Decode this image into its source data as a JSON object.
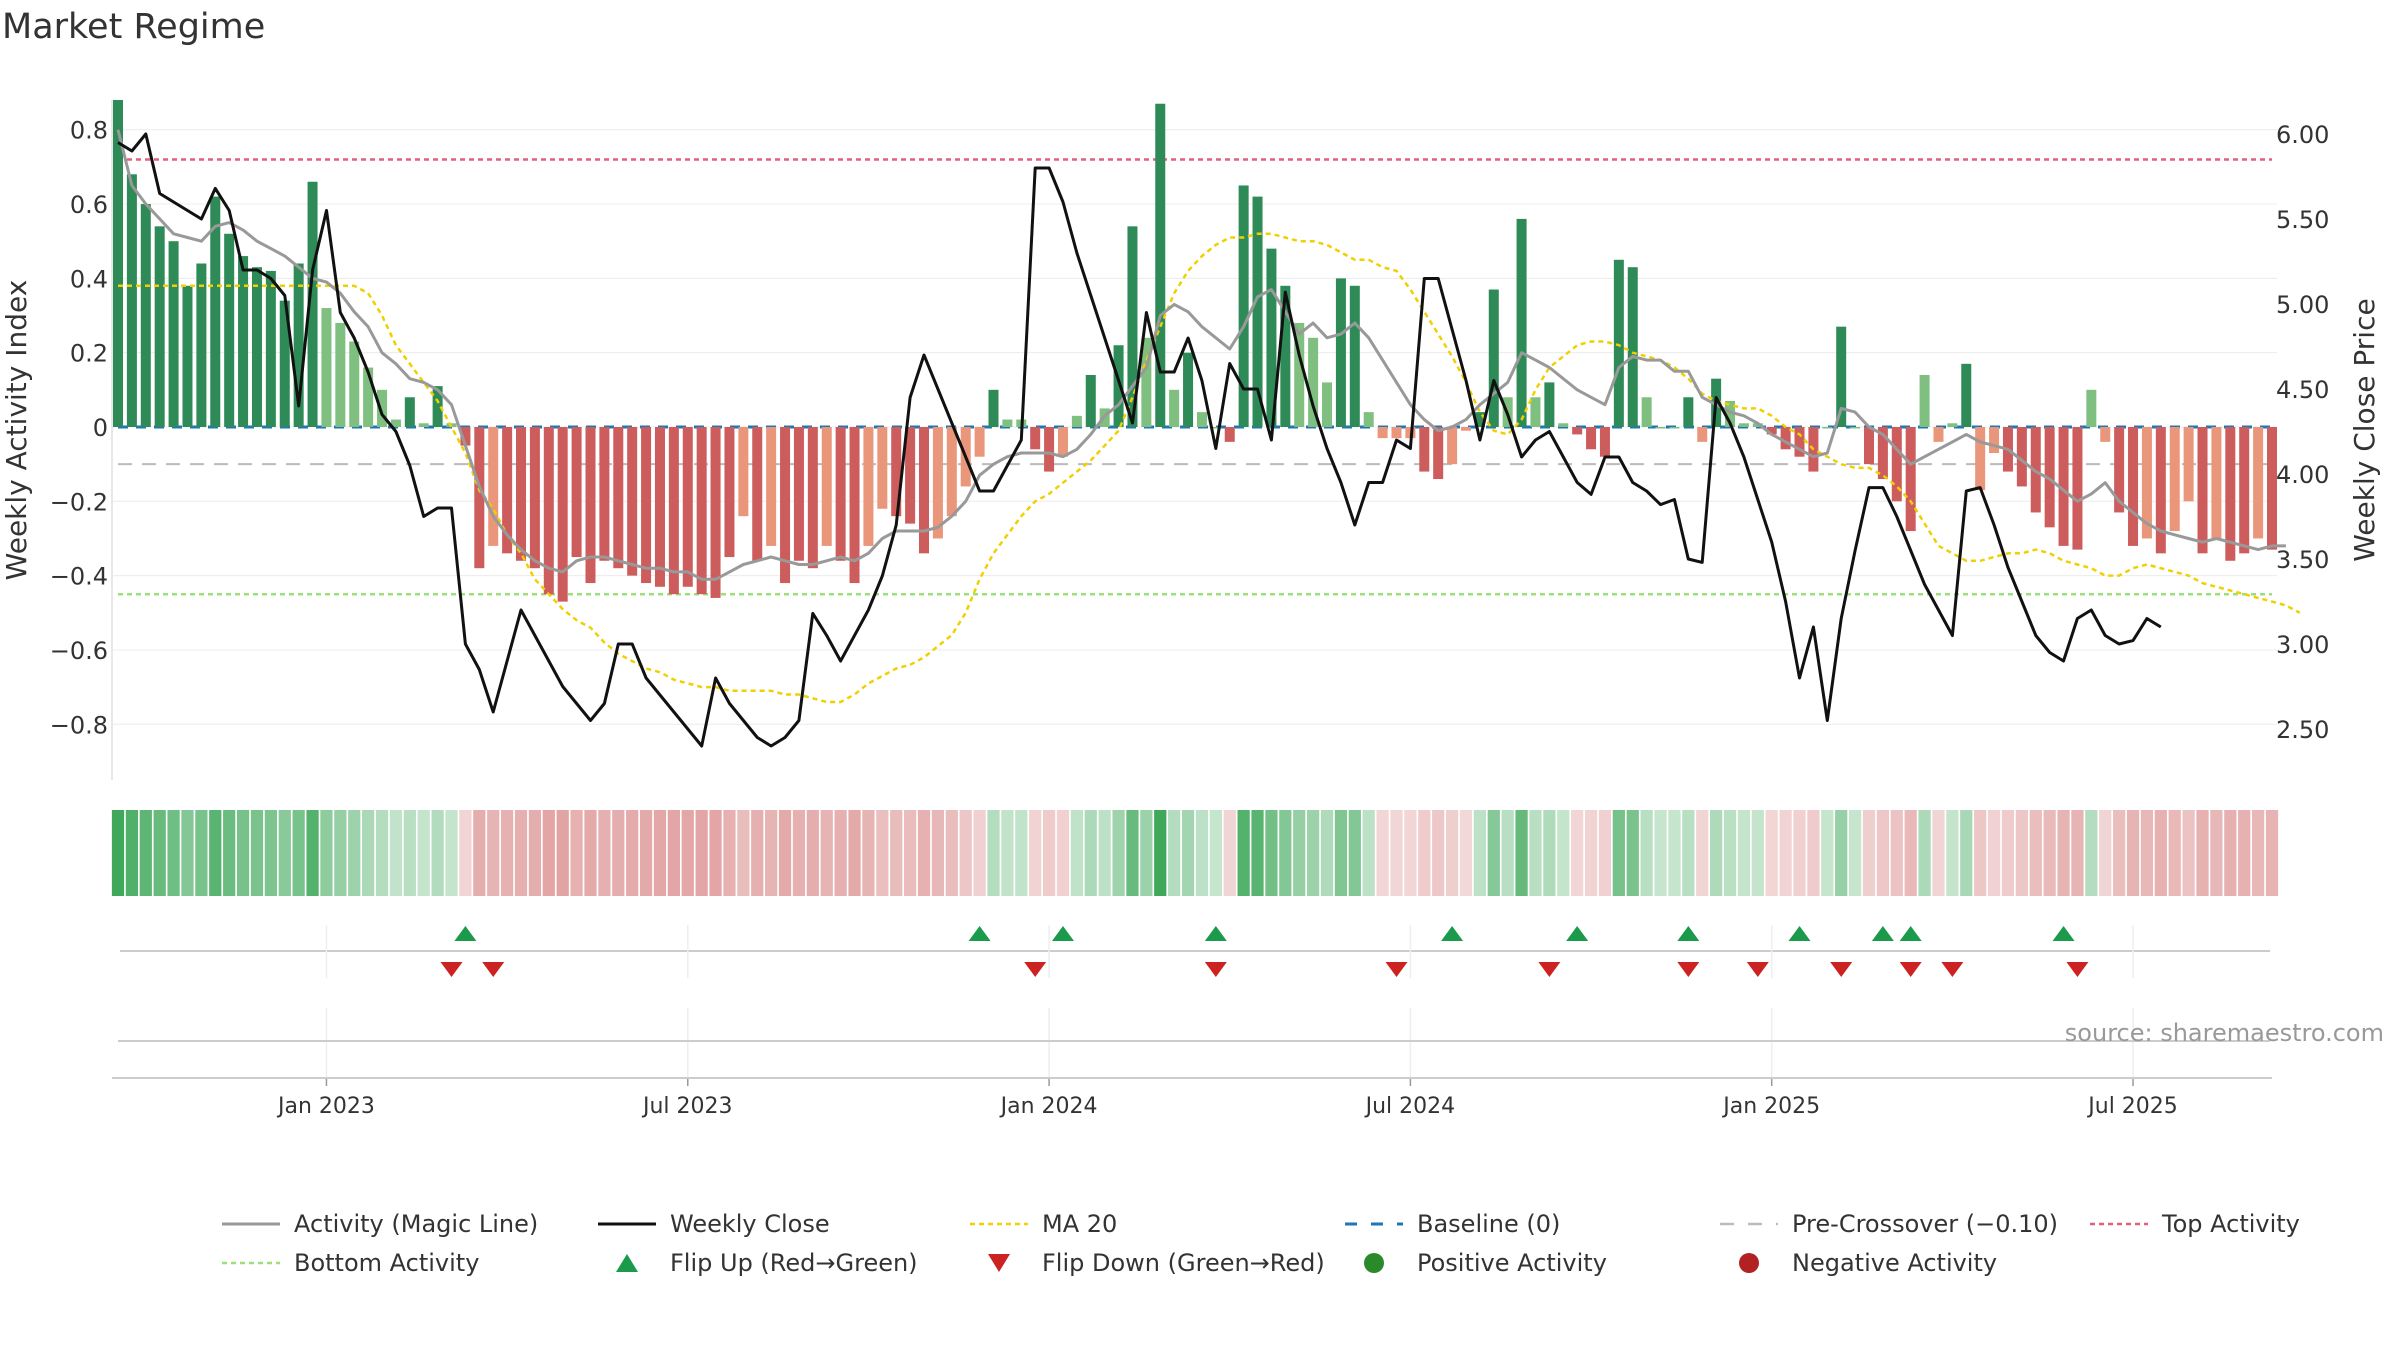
{
  "title": "Market Regime",
  "source": "source: sharemaestro.com",
  "colors": {
    "pos_dark": "#2e8b57",
    "pos_light": "#7fbf7f",
    "neg_dark": "#cd5c5c",
    "neg_light": "#e9967a",
    "close": "#111111",
    "magic": "#999999",
    "ma20": "#f0d000",
    "baseline": "#1f77b4",
    "precross": "#bbbbbb",
    "top": "#e0607e",
    "bottom": "#9be07a",
    "flip_up": "#1a9a4a",
    "flip_down": "#cc2222"
  },
  "chart_data": {
    "type": "bar",
    "title": "Market Regime",
    "ylabel_left": "Weekly Activity Index",
    "ylabel_right": "Weekly Close Price",
    "ylim_left": [
      -0.95,
      0.88
    ],
    "ylim_right": [
      2.2,
      6.2
    ],
    "left_ticks": [
      -0.8,
      -0.6,
      -0.4,
      -0.2,
      0,
      0.2,
      0.4,
      0.6,
      0.8
    ],
    "left_tick_labels": [
      "−0.8",
      "−0.6",
      "−0.4",
      "−0.2",
      "0",
      "0.2",
      "0.4",
      "0.6",
      "0.8"
    ],
    "right_ticks": [
      2.5,
      3.0,
      3.5,
      4.0,
      4.5,
      5.0,
      5.5,
      6.0
    ],
    "right_tick_labels": [
      "2.50",
      "3.00",
      "3.50",
      "4.00",
      "4.50",
      "5.00",
      "5.50",
      "6.00"
    ],
    "x_tick_labels": [
      "Jan 2023",
      "Jul 2023",
      "Jan 2024",
      "Jul 2024",
      "Jan 2025",
      "Jul 2025"
    ],
    "x_tick_weeks": [
      15,
      41,
      67,
      93,
      119,
      145
    ],
    "grid": true,
    "reference_lines": {
      "top_activity": 0.72,
      "bottom_activity": -0.45,
      "pre_crossover": -0.1,
      "baseline": 0
    },
    "activity": [
      0.88,
      0.68,
      0.6,
      0.54,
      0.5,
      0.38,
      0.44,
      0.62,
      0.52,
      0.46,
      0.43,
      0.42,
      0.34,
      0.44,
      0.66,
      0.32,
      0.28,
      0.23,
      0.16,
      0.1,
      0.02,
      0.08,
      0.01,
      0.11,
      0.01,
      -0.05,
      -0.38,
      -0.32,
      -0.34,
      -0.36,
      -0.38,
      -0.45,
      -0.47,
      -0.35,
      -0.42,
      -0.36,
      -0.38,
      -0.4,
      -0.42,
      -0.43,
      -0.45,
      -0.43,
      -0.45,
      -0.46,
      -0.35,
      -0.24,
      -0.36,
      -0.32,
      -0.42,
      -0.36,
      -0.38,
      -0.32,
      -0.36,
      -0.42,
      -0.32,
      -0.22,
      -0.24,
      -0.26,
      -0.34,
      -0.3,
      -0.24,
      -0.16,
      -0.08,
      0.1,
      0.02,
      0.02,
      -0.06,
      -0.12,
      -0.08,
      0.03,
      0.14,
      0.05,
      0.22,
      0.54,
      0.24,
      0.87,
      0.1,
      0.2,
      0.04,
      0.0,
      -0.04,
      0.65,
      0.62,
      0.48,
      0.38,
      0.28,
      0.24,
      0.12,
      0.4,
      0.38,
      0.04,
      -0.03,
      -0.03,
      -0.03,
      -0.12,
      -0.14,
      -0.1,
      -0.01,
      0.04,
      0.37,
      0.08,
      0.56,
      0.08,
      0.12,
      0.01,
      -0.02,
      -0.06,
      -0.08,
      0.45,
      0.43,
      0.08,
      0.0,
      0.0,
      0.08,
      -0.04,
      0.13,
      0.07,
      0.01,
      0.01,
      -0.02,
      -0.06,
      -0.08,
      -0.12,
      0.0,
      0.27,
      0.0,
      -0.1,
      -0.14,
      -0.2,
      -0.28,
      0.14,
      -0.04,
      0.01,
      0.17,
      -0.17,
      -0.07,
      -0.12,
      -0.16,
      -0.23,
      -0.27,
      -0.32,
      -0.33,
      0.1,
      -0.04,
      -0.23,
      -0.32,
      -0.3,
      -0.34,
      -0.28,
      -0.2,
      -0.34,
      -0.3,
      -0.36,
      -0.34,
      -0.3,
      -0.33
    ],
    "magic_line": [
      0.8,
      0.65,
      0.6,
      0.56,
      0.52,
      0.51,
      0.5,
      0.54,
      0.55,
      0.53,
      0.5,
      0.48,
      0.46,
      0.43,
      0.4,
      0.39,
      0.36,
      0.31,
      0.27,
      0.2,
      0.17,
      0.13,
      0.12,
      0.1,
      0.06,
      -0.05,
      -0.16,
      -0.24,
      -0.29,
      -0.33,
      -0.36,
      -0.38,
      -0.39,
      -0.36,
      -0.35,
      -0.35,
      -0.36,
      -0.37,
      -0.38,
      -0.38,
      -0.39,
      -0.39,
      -0.41,
      -0.41,
      -0.39,
      -0.37,
      -0.36,
      -0.35,
      -0.36,
      -0.37,
      -0.37,
      -0.36,
      -0.35,
      -0.36,
      -0.34,
      -0.3,
      -0.28,
      -0.28,
      -0.28,
      -0.27,
      -0.24,
      -0.2,
      -0.13,
      -0.1,
      -0.08,
      -0.07,
      -0.07,
      -0.07,
      -0.08,
      -0.06,
      -0.02,
      0.03,
      0.06,
      0.11,
      0.16,
      0.3,
      0.33,
      0.31,
      0.27,
      0.24,
      0.21,
      0.27,
      0.35,
      0.37,
      0.31,
      0.25,
      0.28,
      0.24,
      0.25,
      0.28,
      0.24,
      0.18,
      0.12,
      0.06,
      0.02,
      -0.01,
      0.0,
      0.02,
      0.06,
      0.09,
      0.12,
      0.2,
      0.18,
      0.16,
      0.13,
      0.1,
      0.08,
      0.06,
      0.16,
      0.19,
      0.18,
      0.18,
      0.15,
      0.15,
      0.08,
      0.06,
      0.04,
      0.03,
      0.01,
      -0.02,
      -0.04,
      -0.06,
      -0.08,
      -0.07,
      0.05,
      0.04,
      0.0,
      -0.02,
      -0.06,
      -0.1,
      -0.08,
      -0.06,
      -0.04,
      -0.02,
      -0.04,
      -0.05,
      -0.06,
      -0.09,
      -0.12,
      -0.14,
      -0.17,
      -0.2,
      -0.18,
      -0.15,
      -0.2,
      -0.23,
      -0.26,
      -0.28,
      -0.29,
      -0.3,
      -0.31,
      -0.3,
      -0.31,
      -0.32,
      -0.33,
      -0.32,
      -0.32
    ],
    "ma20": [
      0.38,
      0.38,
      0.38,
      0.38,
      0.38,
      0.38,
      0.38,
      0.38,
      0.38,
      0.38,
      0.38,
      0.38,
      0.38,
      0.38,
      0.38,
      0.38,
      0.38,
      0.38,
      0.36,
      0.3,
      0.22,
      0.17,
      0.12,
      0.07,
      0.0,
      -0.07,
      -0.17,
      -0.22,
      -0.29,
      -0.34,
      -0.41,
      -0.45,
      -0.49,
      -0.52,
      -0.54,
      -0.58,
      -0.61,
      -0.63,
      -0.65,
      -0.66,
      -0.68,
      -0.69,
      -0.7,
      -0.7,
      -0.71,
      -0.71,
      -0.71,
      -0.71,
      -0.72,
      -0.72,
      -0.73,
      -0.74,
      -0.74,
      -0.72,
      -0.69,
      -0.67,
      -0.65,
      -0.64,
      -0.62,
      -0.59,
      -0.56,
      -0.5,
      -0.41,
      -0.34,
      -0.29,
      -0.24,
      -0.2,
      -0.18,
      -0.15,
      -0.12,
      -0.09,
      -0.05,
      -0.01,
      0.08,
      0.18,
      0.27,
      0.36,
      0.42,
      0.46,
      0.49,
      0.51,
      0.51,
      0.52,
      0.52,
      0.51,
      0.5,
      0.5,
      0.49,
      0.47,
      0.45,
      0.45,
      0.43,
      0.42,
      0.37,
      0.31,
      0.25,
      0.19,
      0.12,
      0.04,
      -0.01,
      -0.02,
      0.02,
      0.1,
      0.16,
      0.19,
      0.22,
      0.23,
      0.23,
      0.22,
      0.2,
      0.19,
      0.18,
      0.16,
      0.13,
      0.09,
      0.07,
      0.06,
      0.05,
      0.05,
      0.03,
      0.0,
      -0.02,
      -0.06,
      -0.08,
      -0.1,
      -0.11,
      -0.11,
      -0.13,
      -0.16,
      -0.2,
      -0.26,
      -0.32,
      -0.34,
      -0.36,
      -0.36,
      -0.35,
      -0.34,
      -0.34,
      -0.33,
      -0.34,
      -0.36,
      -0.37,
      -0.38,
      -0.4,
      -0.4,
      -0.38,
      -0.37,
      -0.38,
      -0.39,
      -0.4,
      -0.42,
      -0.43,
      -0.44,
      -0.45,
      -0.46,
      -0.47,
      -0.48,
      -0.5
    ],
    "weekly_close": [
      5.95,
      5.9,
      6.0,
      5.65,
      5.6,
      5.55,
      5.5,
      5.68,
      5.55,
      5.2,
      5.2,
      5.15,
      5.05,
      4.4,
      5.2,
      5.55,
      4.95,
      4.8,
      4.6,
      4.35,
      4.25,
      4.05,
      3.75,
      3.8,
      3.8,
      3.0,
      2.85,
      2.6,
      2.9,
      3.2,
      3.05,
      2.9,
      2.75,
      2.65,
      2.55,
      2.65,
      3.0,
      3.0,
      2.8,
      2.7,
      2.6,
      2.5,
      2.4,
      2.8,
      2.65,
      2.55,
      2.45,
      2.4,
      2.45,
      2.55,
      3.18,
      3.05,
      2.9,
      3.05,
      3.2,
      3.4,
      3.7,
      4.45,
      4.7,
      4.5,
      4.3,
      4.1,
      3.9,
      3.9,
      4.05,
      4.2,
      5.8,
      5.8,
      5.6,
      5.3,
      5.05,
      4.8,
      4.55,
      4.3,
      4.95,
      4.6,
      4.6,
      4.8,
      4.55,
      4.15,
      4.65,
      4.5,
      4.5,
      4.2,
      5.07,
      4.7,
      4.4,
      4.15,
      3.95,
      3.7,
      3.95,
      3.95,
      4.2,
      4.15,
      5.15,
      5.15,
      4.85,
      4.55,
      4.2,
      4.55,
      4.35,
      4.1,
      4.2,
      4.25,
      4.1,
      3.95,
      3.88,
      4.1,
      4.1,
      3.95,
      3.9,
      3.82,
      3.85,
      3.5,
      3.48,
      4.45,
      4.3,
      4.1,
      3.85,
      3.6,
      3.25,
      2.8,
      3.1,
      2.55,
      3.15,
      3.55,
      3.92,
      3.92,
      3.75,
      3.55,
      3.35,
      3.2,
      3.05,
      3.9,
      3.92,
      3.7,
      3.45,
      3.25,
      3.05,
      2.95,
      2.9,
      3.15,
      3.2,
      3.05,
      3.0,
      3.02,
      3.15,
      3.1
    ],
    "flip_up": [
      25,
      62,
      68,
      79,
      96,
      105,
      113,
      121,
      127,
      129,
      140
    ],
    "flip_down": [
      24,
      27,
      66,
      79,
      92,
      103,
      113,
      118,
      124,
      129,
      132,
      141
    ],
    "legend": [
      {
        "label": "Activity (Magic Line)",
        "style": "magic"
      },
      {
        "label": "Weekly Close",
        "style": "close"
      },
      {
        "label": "MA 20",
        "style": "ma20"
      },
      {
        "label": "Baseline (0)",
        "style": "baseline"
      },
      {
        "label": "Pre-Crossover (−0.10)",
        "style": "precross"
      },
      {
        "label": "Top Activity",
        "style": "top"
      },
      {
        "label": "Bottom Activity",
        "style": "bottom"
      },
      {
        "label": "Flip Up (Red→Green)",
        "style": "flip_up"
      },
      {
        "label": "Flip Down (Green→Red)",
        "style": "flip_down"
      },
      {
        "label": "Positive Activity",
        "style": "pos"
      },
      {
        "label": "Negative Activity",
        "style": "neg"
      }
    ]
  }
}
